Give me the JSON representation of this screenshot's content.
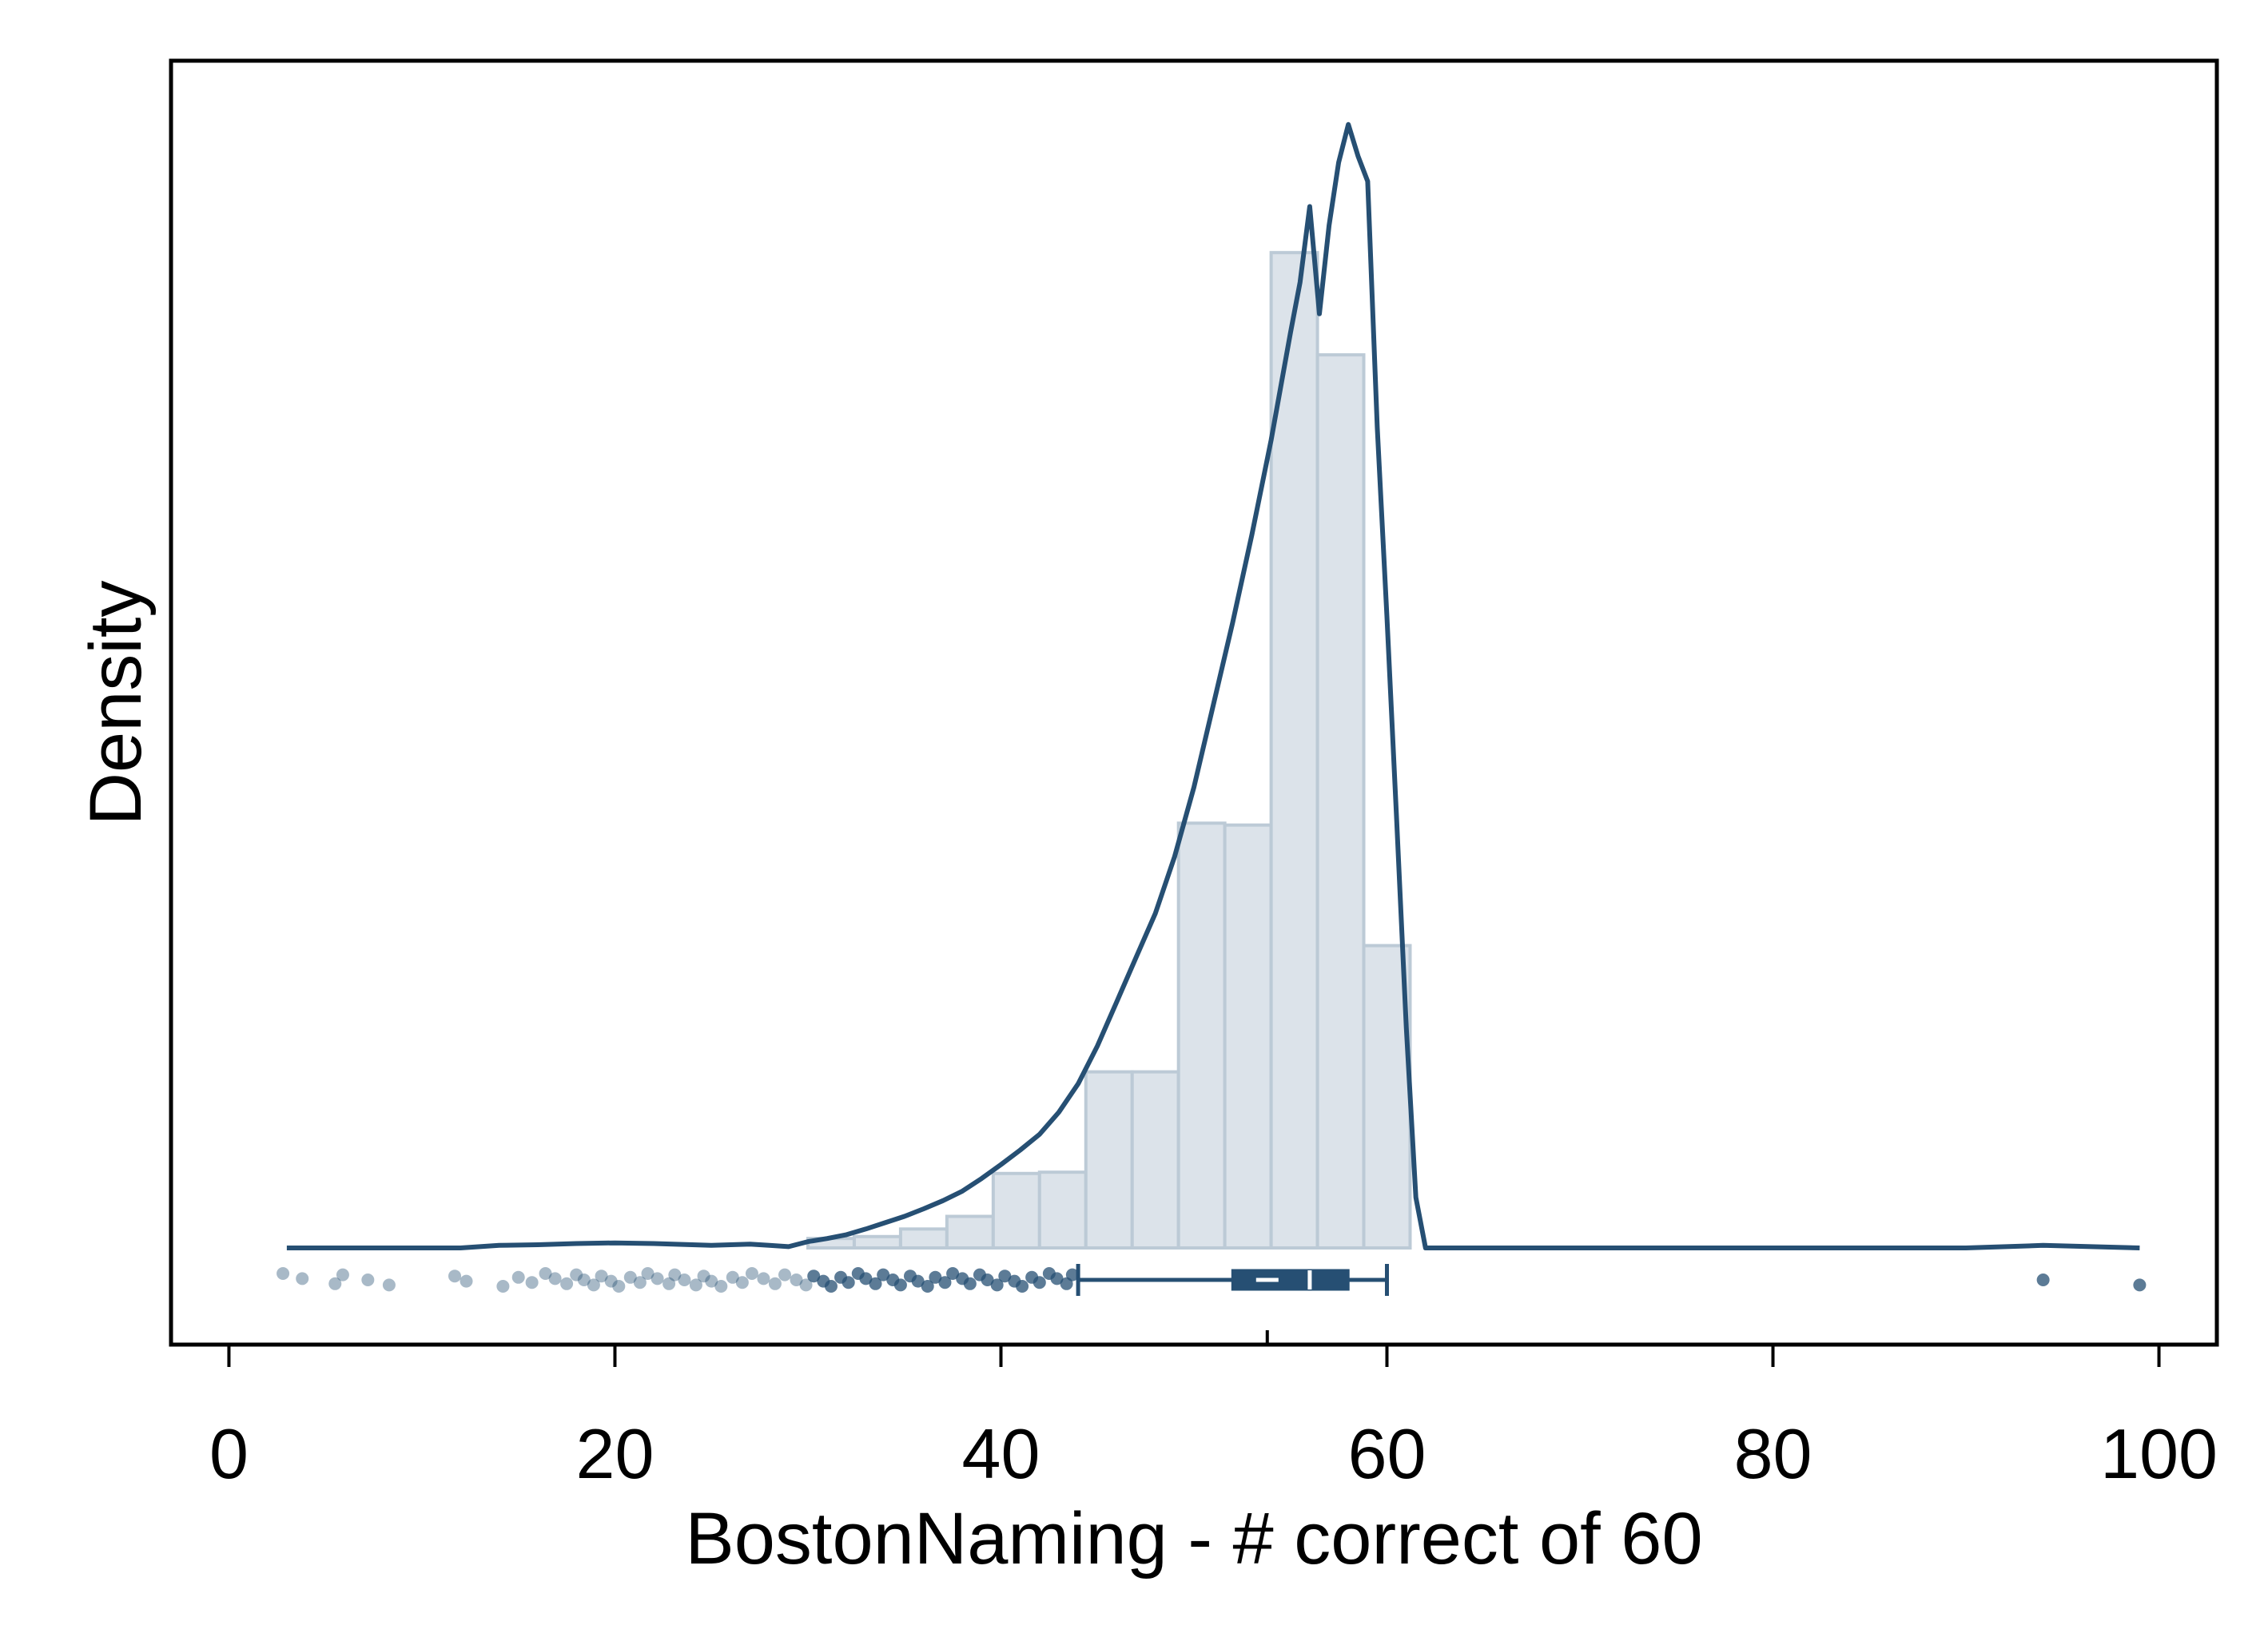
{
  "chart_data": {
    "type": "bar",
    "title": "",
    "xlabel": "BostonNaming - # correct of 60",
    "ylabel": "Density",
    "xlim": [
      -3,
      103
    ],
    "x_ticks": [
      0,
      20,
      40,
      60,
      80,
      100
    ],
    "y_ticks": [],
    "grid": false,
    "legend": "none",
    "colors": {
      "line": "#264f73",
      "bar_fill": "#dce3ea",
      "bar_edge": "#bccad6",
      "axis": "#000000"
    },
    "histogram": {
      "bin_edges": [
        30.0,
        32.4,
        34.8,
        37.2,
        39.6,
        42.0,
        44.4,
        46.8,
        49.2,
        51.6,
        54.0,
        56.4,
        58.8,
        61.2
      ],
      "density": [
        0.0015,
        0.0018,
        0.003,
        0.005,
        0.0118,
        0.012,
        0.0279,
        0.0279,
        0.0673,
        0.067,
        0.1577,
        0.1415,
        0.0479
      ]
    },
    "density_curve": {
      "x": [
        3,
        8,
        12,
        14,
        16,
        18,
        20,
        22,
        24,
        25,
        27,
        28,
        29,
        30,
        31,
        32,
        33,
        34,
        35,
        36,
        37,
        38,
        39,
        40,
        41,
        42,
        43,
        44,
        45,
        46,
        47,
        48,
        49,
        50,
        51,
        52,
        53,
        54,
        55,
        55.5,
        56,
        56.5,
        57,
        57.5,
        58,
        58.5,
        59,
        59.5,
        60,
        60.5,
        61,
        61.5,
        62,
        70,
        80,
        90,
        94,
        99
      ],
      "y": [
        0.0,
        0.0,
        0.0,
        0.0004,
        0.0005,
        0.0007,
        0.0008,
        0.0007,
        0.0005,
        0.0004,
        0.0006,
        0.0004,
        0.0002,
        0.001,
        0.0015,
        0.0021,
        0.003,
        0.004,
        0.005,
        0.0062,
        0.0075,
        0.009,
        0.011,
        0.0132,
        0.0155,
        0.018,
        0.0215,
        0.026,
        0.032,
        0.039,
        0.046,
        0.053,
        0.062,
        0.073,
        0.086,
        0.099,
        0.113,
        0.128,
        0.145,
        0.153,
        0.165,
        0.148,
        0.162,
        0.172,
        0.178,
        0.173,
        0.169,
        0.13,
        0.1,
        0.068,
        0.035,
        0.008,
        0.0,
        0.0,
        0.0,
        0.0,
        0.0004,
        0.0
      ]
    },
    "box_plot": {
      "whisker_low": 44,
      "q1": 52,
      "median": 56,
      "mean": 53.8,
      "q3": 58,
      "whisker_high": 60
    },
    "outliers": [
      2.8,
      3.8,
      5.5,
      5.9,
      7.2,
      8.3,
      11.7,
      12.3,
      14.2,
      15.0,
      15.7,
      16.4,
      16.9,
      17.5,
      18.0,
      18.4,
      18.9,
      19.3,
      19.8,
      20.2,
      20.8,
      21.3,
      21.7,
      22.2,
      22.8,
      23.1,
      23.6,
      24.2,
      24.6,
      25.0,
      25.5,
      26.1,
      26.6,
      27.1,
      27.7,
      28.3,
      28.8,
      29.4,
      29.9,
      30.3,
      30.8,
      31.2,
      31.7,
      32.1,
      32.6,
      33.0,
      33.5,
      33.9,
      34.4,
      34.8,
      35.3,
      35.7,
      36.2,
      36.6,
      37.1,
      37.5,
      38.0,
      38.4,
      38.9,
      39.3,
      39.8,
      40.2,
      40.7,
      41.1,
      41.6,
      42.0,
      42.5,
      42.9,
      43.4,
      43.7,
      94.0,
      99.0
    ]
  }
}
